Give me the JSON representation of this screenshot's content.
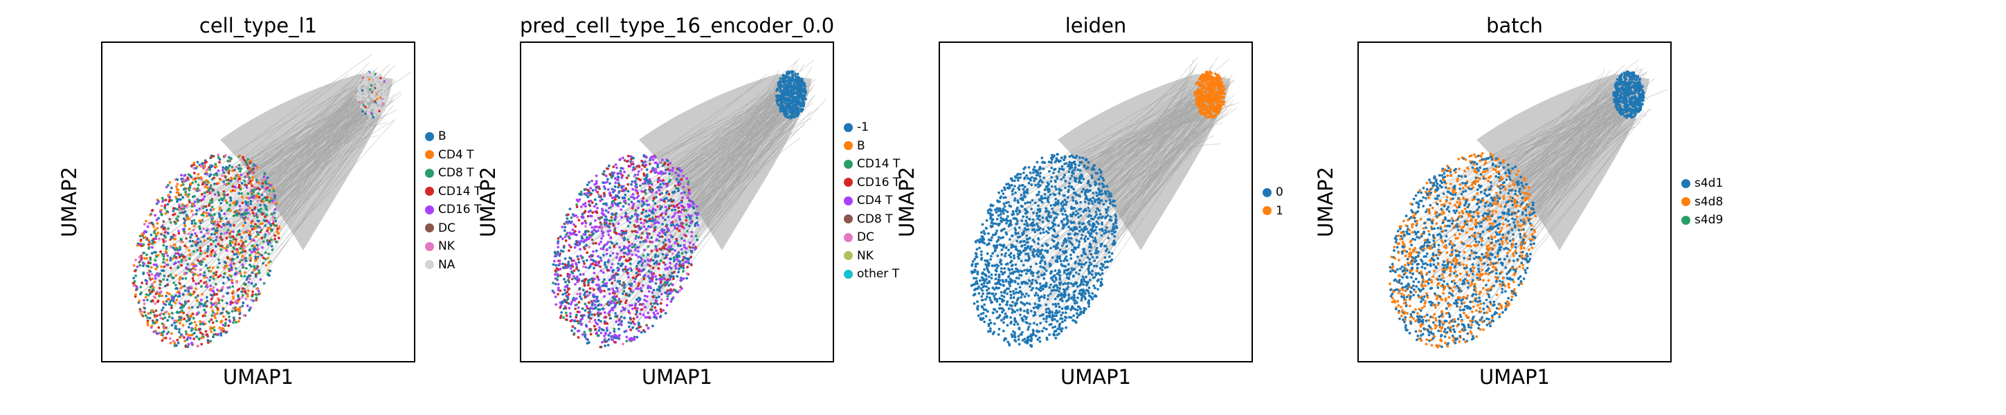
{
  "chart_data": [
    {
      "type": "scatter",
      "title": "cell_type_l1",
      "xlabel": "UMAP1",
      "ylabel": "UMAP2",
      "grid": false,
      "legend_position": "right",
      "legend": [
        {
          "label": "B",
          "color": "#1f77b4"
        },
        {
          "label": "CD4 T",
          "color": "#ff7f0e"
        },
        {
          "label": "CD8 T",
          "color": "#279e68"
        },
        {
          "label": "CD14 T",
          "color": "#d62728"
        },
        {
          "label": "CD16 T",
          "color": "#aa40fc"
        },
        {
          "label": "DC",
          "color": "#8c564b"
        },
        {
          "label": "NK",
          "color": "#e377c2"
        },
        {
          "label": "NA",
          "color": "#d3d3d3"
        }
      ],
      "mix": [
        [
          0,
          0.2
        ],
        [
          1,
          0.2
        ],
        [
          2,
          0.22
        ],
        [
          3,
          0.14
        ],
        [
          4,
          0.1
        ],
        [
          5,
          0.06
        ],
        [
          6,
          0.08
        ]
      ],
      "top_cluster_color": "#d3d3d3",
      "top_cluster_sparse": true
    },
    {
      "type": "scatter",
      "title": "pred_cell_type_16_encoder_0.0",
      "xlabel": "UMAP1",
      "ylabel": "UMAP2",
      "grid": false,
      "legend_position": "right",
      "legend": [
        {
          "label": "-1",
          "color": "#1f77b4"
        },
        {
          "label": "B",
          "color": "#ff7f0e"
        },
        {
          "label": "CD14 T",
          "color": "#279e68"
        },
        {
          "label": "CD16 T",
          "color": "#d62728"
        },
        {
          "label": "CD4 T",
          "color": "#aa40fc"
        },
        {
          "label": "CD8 T",
          "color": "#8c564b"
        },
        {
          "label": "DC",
          "color": "#e377c2"
        },
        {
          "label": "NK",
          "color": "#b5bd61"
        },
        {
          "label": "other T",
          "color": "#17becf"
        }
      ],
      "mix": [
        [
          0,
          0.35
        ],
        [
          4,
          0.35
        ],
        [
          3,
          0.18
        ],
        [
          2,
          0.05
        ],
        [
          5,
          0.05
        ],
        [
          6,
          0.02
        ]
      ],
      "top_cluster_color": "#1f77b4",
      "top_cluster_sparse": false
    },
    {
      "type": "scatter",
      "title": "leiden",
      "xlabel": "UMAP1",
      "ylabel": "UMAP2",
      "grid": false,
      "legend_position": "right",
      "legend": [
        {
          "label": "0",
          "color": "#1f77b4"
        },
        {
          "label": "1",
          "color": "#ff7f0e"
        }
      ],
      "mix": [
        [
          0,
          1.0
        ]
      ],
      "top_cluster_color": "#ff7f0e",
      "top_cluster_sparse": false
    },
    {
      "type": "scatter",
      "title": "batch",
      "xlabel": "UMAP1",
      "ylabel": "UMAP2",
      "grid": false,
      "legend_position": "right",
      "legend": [
        {
          "label": "s4d1",
          "color": "#1f77b4"
        },
        {
          "label": "s4d8",
          "color": "#ff7f0e"
        },
        {
          "label": "s4d9",
          "color": "#279e68"
        }
      ],
      "mix": [
        [
          0,
          0.55
        ],
        [
          1,
          0.45
        ]
      ],
      "top_cluster_color": "#1f77b4",
      "top_cluster_sparse": false
    }
  ]
}
